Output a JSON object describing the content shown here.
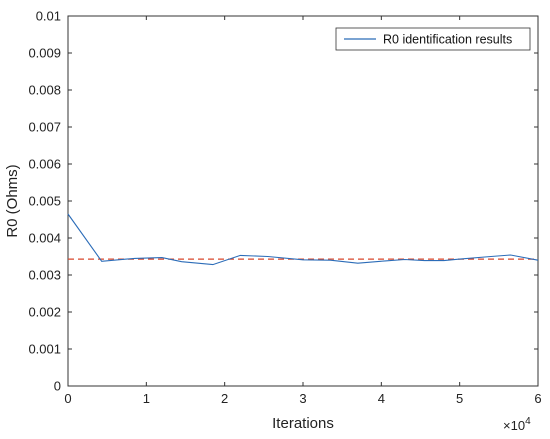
{
  "chart_data": {
    "type": "line",
    "xlabel": "Iterations",
    "ylabel": "R0 (Ohms)",
    "x_multiplier_label": "×10",
    "x_multiplier_exp": "4",
    "xlim": [
      0,
      6
    ],
    "ylim": [
      0,
      0.01
    ],
    "x_ticks": [
      "0",
      "1",
      "2",
      "3",
      "4",
      "5",
      "6"
    ],
    "y_ticks": [
      "0",
      "0.001",
      "0.002",
      "0.003",
      "0.004",
      "0.005",
      "0.006",
      "0.007",
      "0.008",
      "0.009",
      "0.01"
    ],
    "grid": false,
    "legend_position": "top-right",
    "series": [
      {
        "name": "R0 identification results",
        "color": "#2b6cb8",
        "x": [
          0,
          0.43,
          0.85,
          1.2,
          1.45,
          1.85,
          2.2,
          2.55,
          3.0,
          3.35,
          3.7,
          4.05,
          4.3,
          4.55,
          4.8,
          5.0,
          5.4,
          5.65,
          6.0
        ],
        "y": [
          0.00465,
          0.00337,
          0.00345,
          0.00347,
          0.00336,
          0.00328,
          0.00353,
          0.0035,
          0.00341,
          0.0034,
          0.00332,
          0.00338,
          0.00342,
          0.00339,
          0.00339,
          0.00343,
          0.0035,
          0.00354,
          0.0034
        ]
      },
      {
        "name": "",
        "color": "#d9472b",
        "style": "dashed",
        "x": [
          0,
          6
        ],
        "y": [
          0.00343,
          0.00343
        ]
      }
    ]
  }
}
